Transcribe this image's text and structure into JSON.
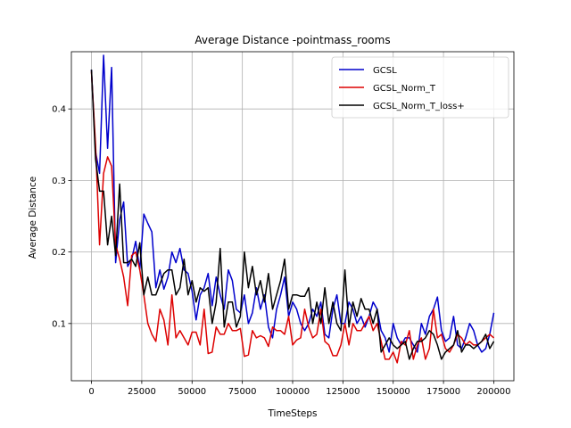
{
  "chart_data": {
    "type": "line",
    "title": "Average Distance -pointmass_rooms",
    "xlabel": "TimeSteps",
    "ylabel": "Average Distance",
    "xlim": [
      -10000,
      210000
    ],
    "ylim": [
      0.02,
      0.48
    ],
    "xticks": [
      0,
      25000,
      50000,
      75000,
      100000,
      125000,
      150000,
      175000,
      200000
    ],
    "yticks": [
      0.1,
      0.2,
      0.3,
      0.4
    ],
    "grid": true,
    "legend_position": "top-right",
    "series": [
      {
        "name": "GCSL",
        "color": "#0000cc",
        "x": [
          0,
          2000,
          4000,
          6000,
          8000,
          10000,
          12000,
          14000,
          16000,
          18000,
          20000,
          22000,
          24000,
          26000,
          28000,
          30000,
          32000,
          34000,
          36000,
          38000,
          40000,
          42000,
          44000,
          46000,
          48000,
          50000,
          52000,
          54000,
          56000,
          58000,
          60000,
          62000,
          64000,
          66000,
          68000,
          70000,
          72000,
          74000,
          76000,
          78000,
          80000,
          82000,
          84000,
          86000,
          88000,
          90000,
          92000,
          94000,
          96000,
          98000,
          100000,
          102000,
          104000,
          106000,
          108000,
          110000,
          112000,
          114000,
          116000,
          118000,
          120000,
          122000,
          124000,
          126000,
          128000,
          130000,
          132000,
          134000,
          136000,
          138000,
          140000,
          142000,
          144000,
          146000,
          148000,
          150000,
          152000,
          154000,
          156000,
          158000,
          160000,
          162000,
          164000,
          166000,
          168000,
          170000,
          172000,
          174000,
          176000,
          178000,
          180000,
          182000,
          184000,
          186000,
          188000,
          190000,
          192000,
          194000,
          196000,
          198000,
          200000
        ],
        "y": [
          0.455,
          0.34,
          0.31,
          0.475,
          0.345,
          0.458,
          0.185,
          0.245,
          0.27,
          0.18,
          0.19,
          0.215,
          0.175,
          0.253,
          0.24,
          0.228,
          0.15,
          0.175,
          0.148,
          0.165,
          0.2,
          0.185,
          0.205,
          0.175,
          0.17,
          0.145,
          0.105,
          0.14,
          0.15,
          0.17,
          0.125,
          0.165,
          0.14,
          0.12,
          0.175,
          0.16,
          0.12,
          0.115,
          0.14,
          0.1,
          0.115,
          0.15,
          0.12,
          0.14,
          0.095,
          0.08,
          0.12,
          0.14,
          0.165,
          0.11,
          0.13,
          0.12,
          0.1,
          0.09,
          0.1,
          0.12,
          0.11,
          0.13,
          0.085,
          0.08,
          0.12,
          0.14,
          0.1,
          0.1,
          0.13,
          0.12,
          0.1,
          0.11,
          0.095,
          0.11,
          0.13,
          0.12,
          0.09,
          0.08,
          0.06,
          0.1,
          0.08,
          0.07,
          0.08,
          0.08,
          0.07,
          0.06,
          0.1,
          0.085,
          0.11,
          0.12,
          0.137,
          0.09,
          0.075,
          0.08,
          0.11,
          0.07,
          0.065,
          0.08,
          0.1,
          0.09,
          0.07,
          0.06,
          0.065,
          0.085,
          0.115
        ]
      },
      {
        "name": "GCSL_Norm_T",
        "color": "#dd0000",
        "x": [
          0,
          2000,
          4000,
          6000,
          8000,
          10000,
          12000,
          14000,
          16000,
          18000,
          20000,
          22000,
          24000,
          26000,
          28000,
          30000,
          32000,
          34000,
          36000,
          38000,
          40000,
          42000,
          44000,
          46000,
          48000,
          50000,
          52000,
          54000,
          56000,
          58000,
          60000,
          62000,
          64000,
          66000,
          68000,
          70000,
          72000,
          74000,
          76000,
          78000,
          80000,
          82000,
          84000,
          86000,
          88000,
          90000,
          92000,
          94000,
          96000,
          98000,
          100000,
          102000,
          104000,
          106000,
          108000,
          110000,
          112000,
          114000,
          116000,
          118000,
          120000,
          122000,
          124000,
          126000,
          128000,
          130000,
          132000,
          134000,
          136000,
          138000,
          140000,
          142000,
          144000,
          146000,
          148000,
          150000,
          152000,
          154000,
          156000,
          158000,
          160000,
          162000,
          164000,
          166000,
          168000,
          170000,
          172000,
          174000,
          176000,
          178000,
          180000,
          182000,
          184000,
          186000,
          188000,
          190000,
          192000,
          194000,
          196000,
          198000,
          200000
        ],
        "y": [
          0.452,
          0.35,
          0.21,
          0.31,
          0.333,
          0.32,
          0.21,
          0.19,
          0.165,
          0.125,
          0.195,
          0.2,
          0.175,
          0.14,
          0.1,
          0.085,
          0.075,
          0.12,
          0.105,
          0.07,
          0.14,
          0.08,
          0.09,
          0.08,
          0.07,
          0.088,
          0.088,
          0.07,
          0.12,
          0.058,
          0.06,
          0.095,
          0.085,
          0.085,
          0.1,
          0.09,
          0.09,
          0.093,
          0.054,
          0.056,
          0.09,
          0.08,
          0.083,
          0.08,
          0.068,
          0.095,
          0.09,
          0.09,
          0.085,
          0.11,
          0.07,
          0.077,
          0.08,
          0.12,
          0.095,
          0.08,
          0.085,
          0.12,
          0.075,
          0.07,
          0.055,
          0.055,
          0.07,
          0.1,
          0.07,
          0.1,
          0.09,
          0.09,
          0.1,
          0.11,
          0.09,
          0.1,
          0.075,
          0.05,
          0.05,
          0.06,
          0.045,
          0.075,
          0.07,
          0.09,
          0.05,
          0.07,
          0.08,
          0.05,
          0.065,
          0.12,
          0.08,
          0.085,
          0.065,
          0.06,
          0.07,
          0.085,
          0.08,
          0.07,
          0.075,
          0.07,
          0.07,
          0.075,
          0.08,
          0.085,
          0.08
        ]
      },
      {
        "name": "GCSL_Norm_T_loss+",
        "color": "#000000",
        "x": [
          0,
          2000,
          4000,
          6000,
          8000,
          10000,
          12000,
          14000,
          16000,
          18000,
          20000,
          22000,
          24000,
          26000,
          28000,
          30000,
          32000,
          34000,
          36000,
          38000,
          40000,
          42000,
          44000,
          46000,
          48000,
          50000,
          52000,
          54000,
          56000,
          58000,
          60000,
          62000,
          64000,
          66000,
          68000,
          70000,
          72000,
          74000,
          76000,
          78000,
          80000,
          82000,
          84000,
          86000,
          88000,
          90000,
          92000,
          94000,
          96000,
          98000,
          100000,
          102000,
          104000,
          106000,
          108000,
          110000,
          112000,
          114000,
          116000,
          118000,
          120000,
          122000,
          124000,
          126000,
          128000,
          130000,
          132000,
          134000,
          136000,
          138000,
          140000,
          142000,
          144000,
          146000,
          148000,
          150000,
          152000,
          154000,
          156000,
          158000,
          160000,
          162000,
          164000,
          166000,
          168000,
          170000,
          172000,
          174000,
          176000,
          178000,
          180000,
          182000,
          184000,
          186000,
          188000,
          190000,
          192000,
          194000,
          196000,
          198000,
          200000
        ],
        "y": [
          0.455,
          0.33,
          0.285,
          0.285,
          0.21,
          0.25,
          0.195,
          0.295,
          0.185,
          0.185,
          0.19,
          0.18,
          0.213,
          0.14,
          0.165,
          0.14,
          0.14,
          0.155,
          0.17,
          0.175,
          0.175,
          0.14,
          0.15,
          0.19,
          0.14,
          0.16,
          0.13,
          0.15,
          0.145,
          0.15,
          0.1,
          0.13,
          0.205,
          0.095,
          0.13,
          0.13,
          0.095,
          0.11,
          0.2,
          0.15,
          0.18,
          0.14,
          0.16,
          0.13,
          0.17,
          0.12,
          0.14,
          0.16,
          0.19,
          0.12,
          0.14,
          0.14,
          0.138,
          0.138,
          0.15,
          0.1,
          0.13,
          0.1,
          0.15,
          0.1,
          0.13,
          0.1,
          0.09,
          0.175,
          0.095,
          0.13,
          0.11,
          0.135,
          0.12,
          0.12,
          0.1,
          0.12,
          0.06,
          0.07,
          0.08,
          0.07,
          0.065,
          0.07,
          0.075,
          0.05,
          0.065,
          0.075,
          0.075,
          0.08,
          0.09,
          0.085,
          0.07,
          0.05,
          0.06,
          0.065,
          0.07,
          0.09,
          0.06,
          0.07,
          0.07,
          0.065,
          0.07,
          0.075,
          0.085,
          0.065,
          0.075
        ]
      }
    ]
  }
}
